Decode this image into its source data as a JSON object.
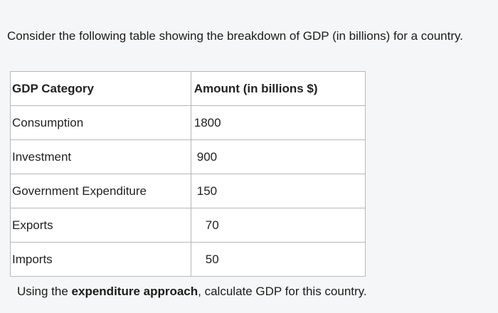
{
  "intro_text": "Consider the following table showing the breakdown of GDP (in billions) for a country.",
  "table": {
    "headers": [
      "GDP Category",
      "Amount (in billions $)"
    ],
    "rows": [
      {
        "category": "Consumption",
        "amount": "1800"
      },
      {
        "category": "Investment",
        "amount": "900"
      },
      {
        "category": "Government Expenditure",
        "amount": "150"
      },
      {
        "category": "Exports",
        "amount": "70"
      },
      {
        "category": "Imports",
        "amount": "50"
      }
    ]
  },
  "question": {
    "before": "Using the ",
    "emphasis": "expenditure approach",
    "after": ", calculate GDP for this country."
  }
}
